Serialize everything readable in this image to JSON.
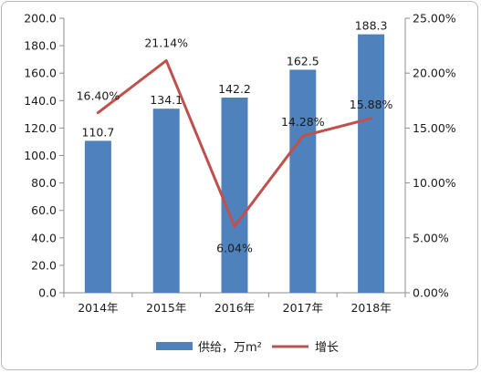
{
  "chart_data": {
    "type": "bar+line",
    "categories": [
      "2014年",
      "2015年",
      "2016年",
      "2017年",
      "2018年"
    ],
    "bar_series": {
      "name": "供给，万m²",
      "values": [
        110.7,
        134.1,
        142.2,
        162.5,
        188.3
      ],
      "value_labels": [
        "110.7",
        "134.1",
        "142.2",
        "162.5",
        "188.3"
      ],
      "color": "#4f81bd",
      "axis": "left"
    },
    "line_series": {
      "name": "增长",
      "values": [
        16.4,
        21.14,
        6.04,
        14.28,
        15.88
      ],
      "value_labels": [
        "16.40%",
        "21.14%",
        "6.04%",
        "14.28%",
        "15.88%"
      ],
      "color": "#c0504d",
      "axis": "right"
    },
    "y_left": {
      "min": 0,
      "max": 200,
      "ticks": [
        "0.0",
        "20.0",
        "40.0",
        "60.0",
        "80.0",
        "100.0",
        "120.0",
        "140.0",
        "160.0",
        "180.0",
        "200.0"
      ]
    },
    "y_right": {
      "min": 0,
      "max": 25,
      "ticks": [
        "0.00%",
        "5.00%",
        "10.00%",
        "15.00%",
        "20.00%",
        "25.00%"
      ]
    },
    "grid": false,
    "legend": "bottom"
  }
}
